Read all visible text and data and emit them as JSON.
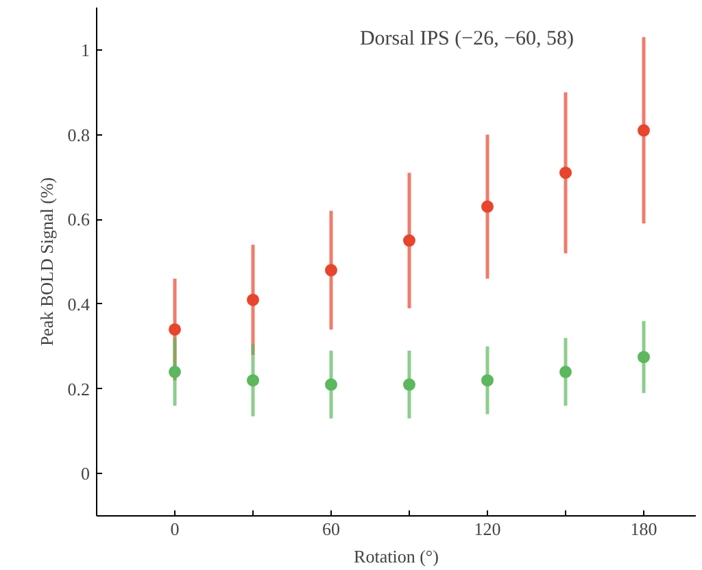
{
  "chart_data": {
    "type": "scatter",
    "xlabel": "Rotation (°)",
    "ylabel": "Peak BOLD Signal (%)",
    "annotations": [
      "Dorsal IPS (−26, −60, 58)"
    ],
    "x": [
      0,
      30,
      60,
      90,
      120,
      150,
      180
    ],
    "series": [
      {
        "color": "#e8452c",
        "values": [
          0.34,
          0.41,
          0.48,
          0.55,
          0.63,
          0.71,
          0.81
        ],
        "errors": [
          0.12,
          0.13,
          0.14,
          0.16,
          0.17,
          0.19,
          0.22
        ]
      },
      {
        "color": "#5cb85c",
        "values": [
          0.24,
          0.22,
          0.21,
          0.21,
          0.22,
          0.24,
          0.275
        ],
        "errors": [
          0.08,
          0.085,
          0.08,
          0.08,
          0.08,
          0.08,
          0.085
        ]
      }
    ],
    "xlim": [
      -30,
      200
    ],
    "ylim": [
      -0.1,
      1.1
    ],
    "xticks": [
      0,
      {
        "value": 30,
        "label": null
      },
      60,
      {
        "value": 90,
        "label": null
      },
      120,
      {
        "value": 150,
        "label": null
      },
      180
    ],
    "yticks": [
      0,
      0.2,
      0.4,
      0.6,
      0.8,
      1
    ],
    "grid": false,
    "marker": "circle"
  }
}
